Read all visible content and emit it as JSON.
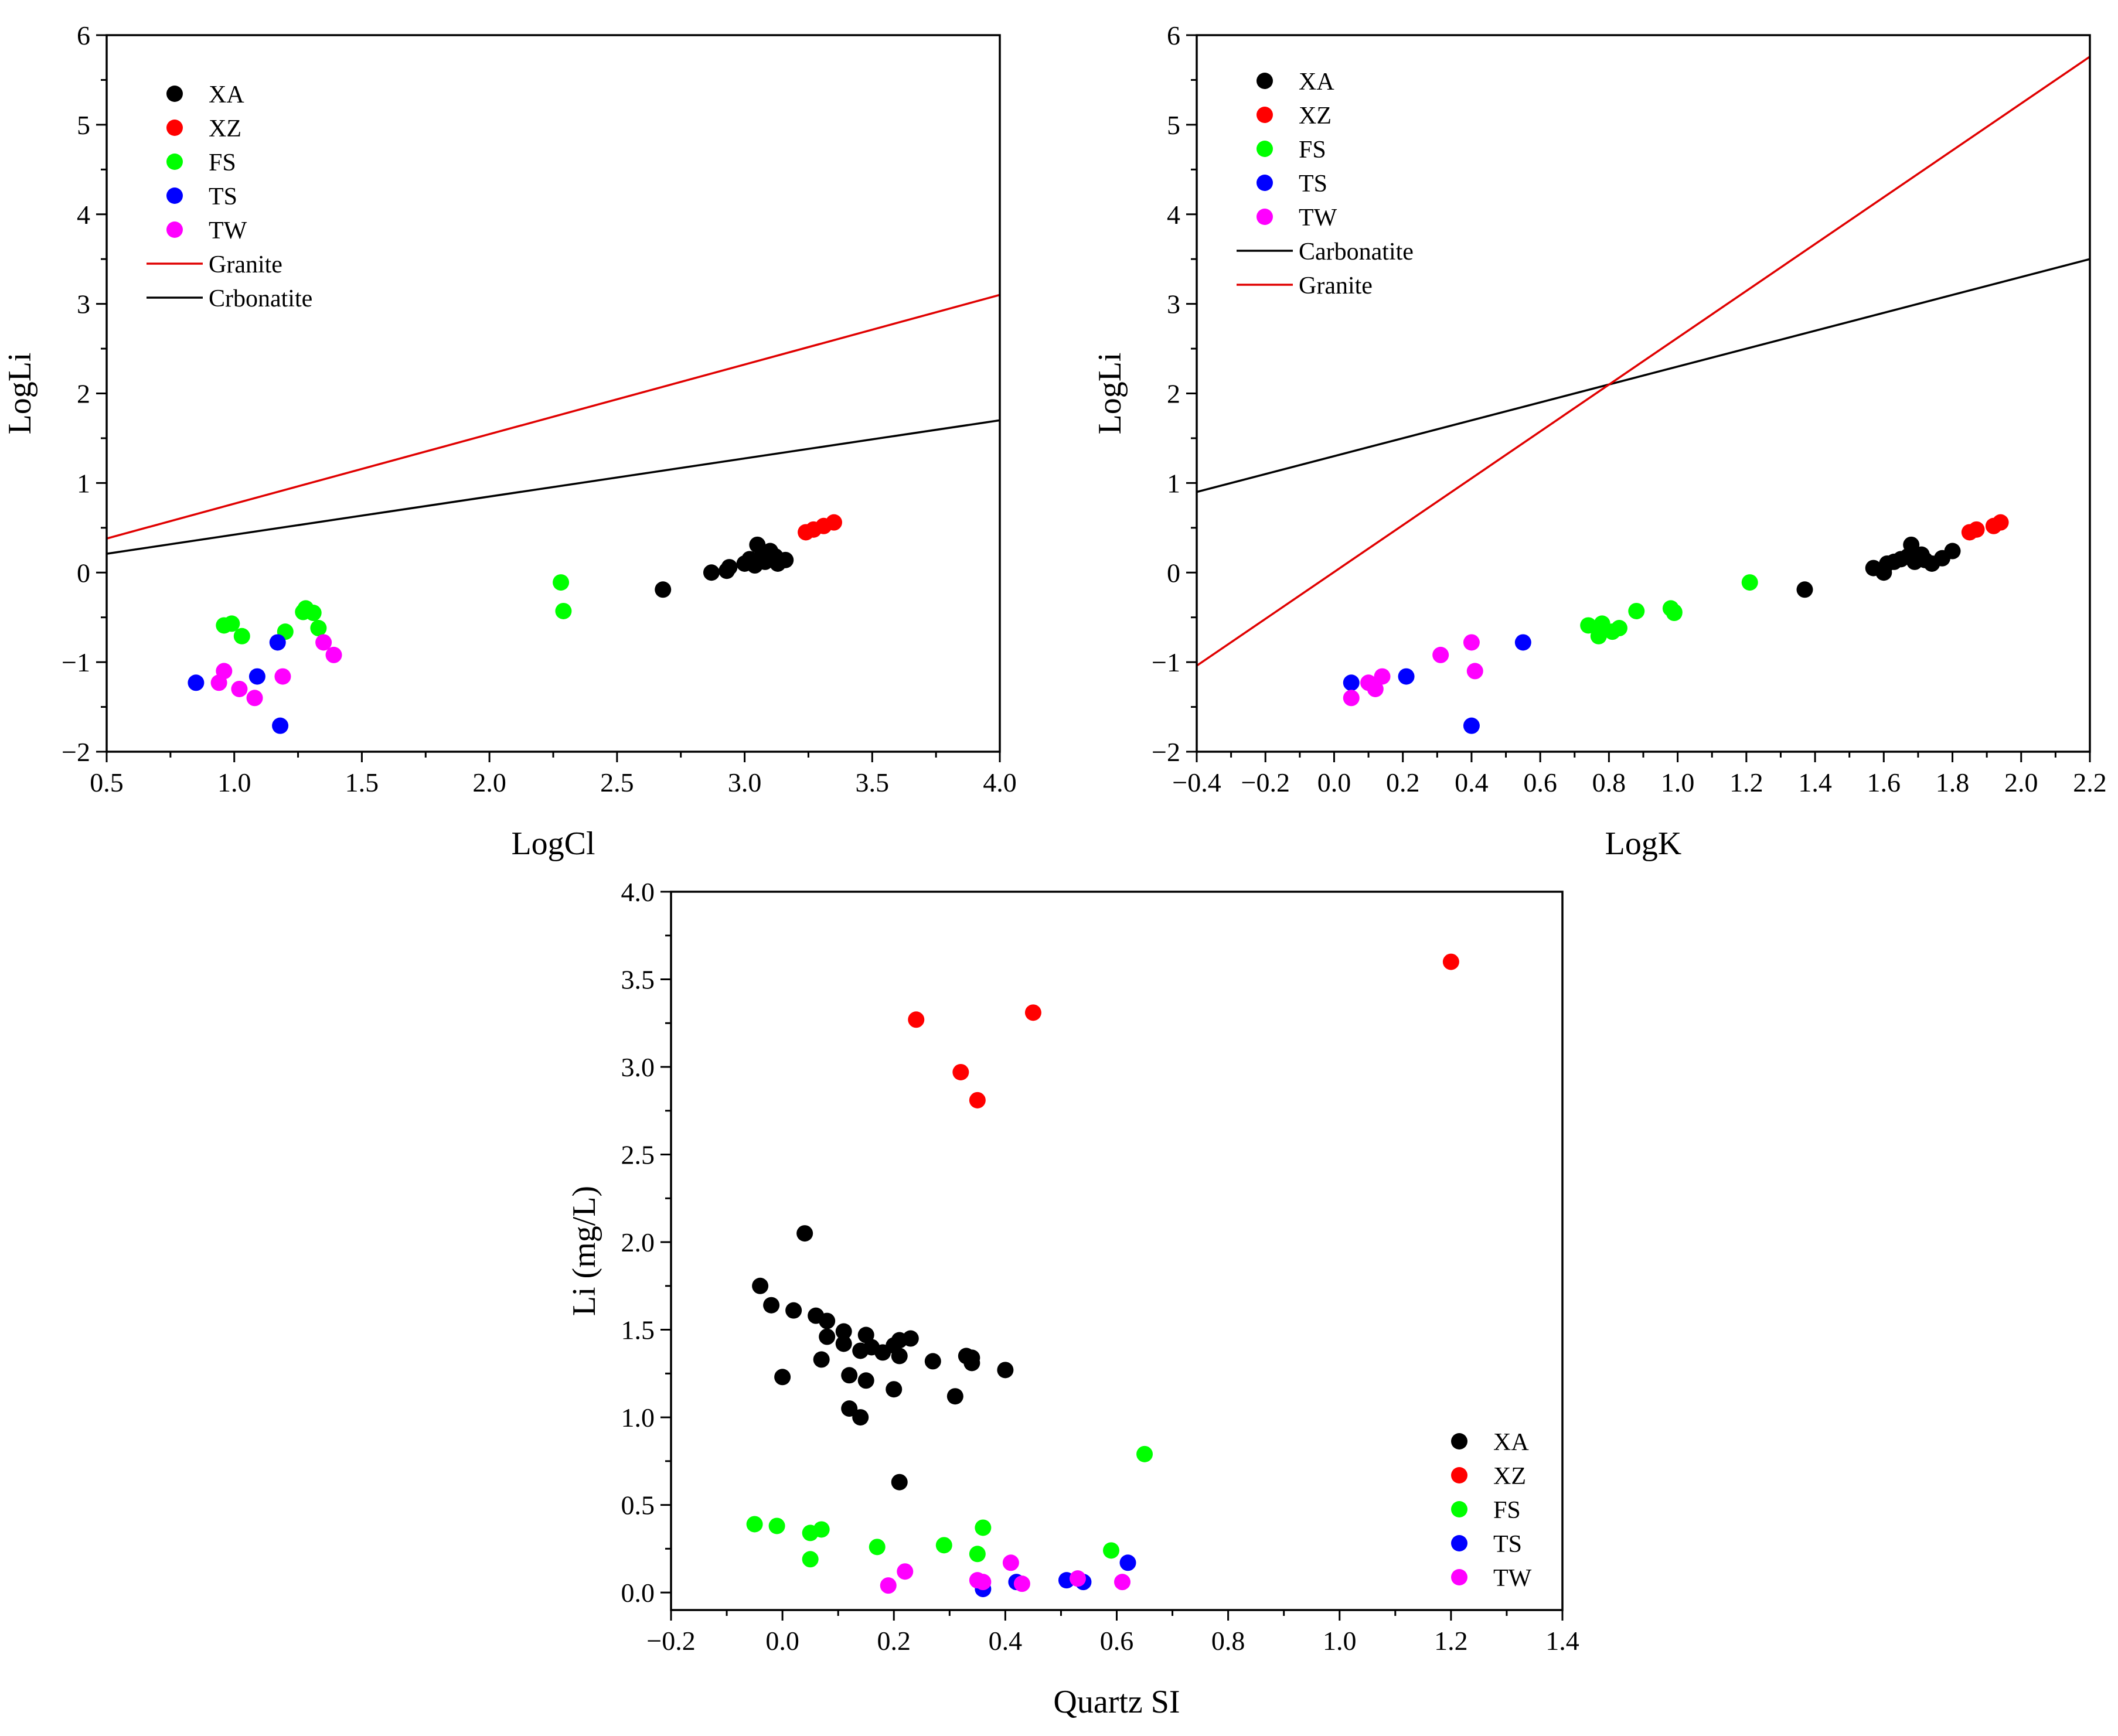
{
  "colors": {
    "XA": "#000000",
    "XZ": "#ff0000",
    "FS": "#00ff00",
    "TS": "#0000ff",
    "TW": "#ff00ff",
    "granite_line": "#e00000",
    "carbonatite_line": "#000000"
  },
  "chart_data": [
    {
      "id": "a",
      "type": "scatter",
      "xlabel": "LogCl",
      "ylabel": "LogLi",
      "xlim": [
        0.5,
        4.0
      ],
      "ylim": [
        -2,
        6
      ],
      "xticks": [
        0.5,
        1.0,
        1.5,
        2.0,
        2.5,
        3.0,
        3.5,
        4.0
      ],
      "xtick_labels": [
        "0.5",
        "1.0",
        "1.5",
        "2.0",
        "2.5",
        "3.0",
        "3.5",
        "4.0"
      ],
      "yticks": [
        -2,
        -1,
        0,
        1,
        2,
        3,
        4,
        5,
        6
      ],
      "ytick_labels": [
        "−2",
        "−1",
        "0",
        "1",
        "2",
        "3",
        "4",
        "5",
        "6"
      ],
      "legend_position": "top-left",
      "legend": [
        {
          "label": "XA",
          "kind": "marker",
          "color": "#000000"
        },
        {
          "label": "XZ",
          "kind": "marker",
          "color": "#ff0000"
        },
        {
          "label": "FS",
          "kind": "marker",
          "color": "#00ff00"
        },
        {
          "label": "TS",
          "kind": "marker",
          "color": "#0000ff"
        },
        {
          "label": "TW",
          "kind": "marker",
          "color": "#ff00ff"
        },
        {
          "label": "Granite",
          "kind": "line",
          "color": "#e00000"
        },
        {
          "label": "Crbonatite",
          "kind": "line",
          "color": "#000000"
        }
      ],
      "lines": [
        {
          "name": "Granite",
          "color": "#e00000",
          "points": [
            [
              0.5,
              0.38
            ],
            [
              4.0,
              3.1
            ]
          ]
        },
        {
          "name": "Crbonatite",
          "color": "#000000",
          "points": [
            [
              0.5,
              0.21
            ],
            [
              4.0,
              1.7
            ]
          ]
        }
      ],
      "series": [
        {
          "name": "XA",
          "color": "#000000",
          "points": [
            [
              2.68,
              -0.19
            ],
            [
              2.87,
              0.0
            ],
            [
              2.93,
              0.02
            ],
            [
              2.94,
              0.06
            ],
            [
              3.0,
              0.1
            ],
            [
              3.02,
              0.15
            ],
            [
              3.04,
              0.08
            ],
            [
              3.05,
              0.31
            ],
            [
              3.07,
              0.2
            ],
            [
              3.08,
              0.12
            ],
            [
              3.1,
              0.24
            ],
            [
              3.12,
              0.18
            ],
            [
              3.13,
              0.1
            ],
            [
              3.16,
              0.14
            ]
          ]
        },
        {
          "name": "XZ",
          "color": "#ff0000",
          "points": [
            [
              3.24,
              0.45
            ],
            [
              3.27,
              0.48
            ],
            [
              3.31,
              0.52
            ],
            [
              3.35,
              0.56
            ]
          ]
        },
        {
          "name": "FS",
          "color": "#00ff00",
          "points": [
            [
              0.96,
              -0.59
            ],
            [
              0.99,
              -0.57
            ],
            [
              1.03,
              -0.71
            ],
            [
              1.2,
              -0.66
            ],
            [
              1.27,
              -0.44
            ],
            [
              1.28,
              -0.4
            ],
            [
              1.31,
              -0.45
            ],
            [
              1.33,
              -0.62
            ],
            [
              2.28,
              -0.11
            ],
            [
              2.29,
              -0.43
            ]
          ]
        },
        {
          "name": "TS",
          "color": "#0000ff",
          "points": [
            [
              0.85,
              -1.23
            ],
            [
              1.09,
              -1.16
            ],
            [
              1.17,
              -0.78
            ],
            [
              1.18,
              -1.71
            ]
          ]
        },
        {
          "name": "TW",
          "color": "#ff00ff",
          "points": [
            [
              0.94,
              -1.23
            ],
            [
              0.96,
              -1.1
            ],
            [
              1.02,
              -1.3
            ],
            [
              1.08,
              -1.4
            ],
            [
              1.19,
              -1.16
            ],
            [
              1.35,
              -0.78
            ],
            [
              1.39,
              -0.92
            ]
          ]
        }
      ]
    },
    {
      "id": "b",
      "type": "scatter",
      "xlabel": "LogK",
      "ylabel": "LogLi",
      "xlim": [
        -0.4,
        2.2
      ],
      "ylim": [
        -2,
        6
      ],
      "xticks": [
        -0.4,
        -0.2,
        0.0,
        0.2,
        0.4,
        0.6,
        0.8,
        1.0,
        1.2,
        1.4,
        1.6,
        1.8,
        2.0,
        2.2
      ],
      "xtick_labels": [
        "−0.4",
        "−0.2",
        "0.0",
        "0.2",
        "0.4",
        "0.6",
        "0.8",
        "1.0",
        "1.2",
        "1.4",
        "1.6",
        "1.8",
        "2.0",
        "2.2"
      ],
      "yticks": [
        -2,
        -1,
        0,
        1,
        2,
        3,
        4,
        5,
        6
      ],
      "ytick_labels": [
        "−2",
        "−1",
        "0",
        "1",
        "2",
        "3",
        "4",
        "5",
        "6"
      ],
      "legend_position": "top-left",
      "legend": [
        {
          "label": "XA",
          "kind": "marker",
          "color": "#000000"
        },
        {
          "label": "XZ",
          "kind": "marker",
          "color": "#ff0000"
        },
        {
          "label": "FS",
          "kind": "marker",
          "color": "#00ff00"
        },
        {
          "label": "TS",
          "kind": "marker",
          "color": "#0000ff"
        },
        {
          "label": "TW",
          "kind": "marker",
          "color": "#ff00ff"
        },
        {
          "label": "Carbonatite",
          "kind": "line",
          "color": "#000000"
        },
        {
          "label": "Granite",
          "kind": "line",
          "color": "#e00000"
        }
      ],
      "lines": [
        {
          "name": "Carbonatite",
          "color": "#000000",
          "points": [
            [
              -0.4,
              0.9
            ],
            [
              2.2,
              3.5
            ]
          ]
        },
        {
          "name": "Granite",
          "color": "#e00000",
          "points": [
            [
              -0.4,
              -1.04
            ],
            [
              2.2,
              5.76
            ]
          ]
        }
      ],
      "series": [
        {
          "name": "XA",
          "color": "#000000",
          "points": [
            [
              1.37,
              -0.19
            ],
            [
              1.57,
              0.05
            ],
            [
              1.6,
              0.0
            ],
            [
              1.61,
              0.1
            ],
            [
              1.63,
              0.12
            ],
            [
              1.65,
              0.15
            ],
            [
              1.67,
              0.18
            ],
            [
              1.68,
              0.31
            ],
            [
              1.69,
              0.12
            ],
            [
              1.71,
              0.2
            ],
            [
              1.72,
              0.14
            ],
            [
              1.74,
              0.1
            ],
            [
              1.77,
              0.16
            ],
            [
              1.8,
              0.24
            ]
          ]
        },
        {
          "name": "XZ",
          "color": "#ff0000",
          "points": [
            [
              1.85,
              0.45
            ],
            [
              1.87,
              0.48
            ],
            [
              1.92,
              0.52
            ],
            [
              1.94,
              0.56
            ]
          ]
        },
        {
          "name": "FS",
          "color": "#00ff00",
          "points": [
            [
              0.74,
              -0.59
            ],
            [
              0.77,
              -0.71
            ],
            [
              0.78,
              -0.57
            ],
            [
              0.81,
              -0.66
            ],
            [
              0.83,
              -0.62
            ],
            [
              0.88,
              -0.43
            ],
            [
              0.98,
              -0.4
            ],
            [
              0.99,
              -0.44
            ],
            [
              0.99,
              -0.45
            ],
            [
              1.21,
              -0.11
            ]
          ]
        },
        {
          "name": "TS",
          "color": "#0000ff",
          "points": [
            [
              0.05,
              -1.23
            ],
            [
              0.21,
              -1.16
            ],
            [
              0.4,
              -1.71
            ],
            [
              0.55,
              -0.78
            ]
          ]
        },
        {
          "name": "TW",
          "color": "#ff00ff",
          "points": [
            [
              0.05,
              -1.4
            ],
            [
              0.1,
              -1.23
            ],
            [
              0.12,
              -1.3
            ],
            [
              0.14,
              -1.16
            ],
            [
              0.31,
              -0.92
            ],
            [
              0.4,
              -0.78
            ],
            [
              0.41,
              -1.1
            ]
          ]
        }
      ]
    },
    {
      "id": "c",
      "type": "scatter",
      "xlabel": "Quartz SI",
      "ylabel": "Li (mg/L)",
      "xlim": [
        -0.2,
        1.4
      ],
      "ylim": [
        -0.1,
        4.0
      ],
      "xticks": [
        -0.2,
        0.0,
        0.2,
        0.4,
        0.6,
        0.8,
        1.0,
        1.2,
        1.4
      ],
      "xtick_labels": [
        "−0.2",
        "0.0",
        "0.2",
        "0.4",
        "0.6",
        "0.8",
        "1.0",
        "1.2",
        "1.4"
      ],
      "yticks": [
        0.0,
        0.5,
        1.0,
        1.5,
        2.0,
        2.5,
        3.0,
        3.5,
        4.0
      ],
      "ytick_labels": [
        "0.0",
        "0.5",
        "1.0",
        "1.5",
        "2.0",
        "2.5",
        "3.0",
        "3.5",
        "4.0"
      ],
      "legend_position": "bottom-right",
      "legend": [
        {
          "label": "XA",
          "kind": "marker",
          "color": "#000000"
        },
        {
          "label": "XZ",
          "kind": "marker",
          "color": "#ff0000"
        },
        {
          "label": "FS",
          "kind": "marker",
          "color": "#00ff00"
        },
        {
          "label": "TS",
          "kind": "marker",
          "color": "#0000ff"
        },
        {
          "label": "TW",
          "kind": "marker",
          "color": "#ff00ff"
        }
      ],
      "lines": [],
      "series": [
        {
          "name": "XA",
          "color": "#000000",
          "points": [
            [
              -0.04,
              1.75
            ],
            [
              -0.02,
              1.64
            ],
            [
              0.0,
              1.23
            ],
            [
              0.02,
              1.61
            ],
            [
              0.04,
              2.05
            ],
            [
              0.06,
              1.58
            ],
            [
              0.07,
              1.33
            ],
            [
              0.08,
              1.55
            ],
            [
              0.08,
              1.46
            ],
            [
              0.11,
              1.49
            ],
            [
              0.11,
              1.42
            ],
            [
              0.12,
              1.24
            ],
            [
              0.12,
              1.05
            ],
            [
              0.14,
              1.38
            ],
            [
              0.14,
              1.0
            ],
            [
              0.15,
              1.47
            ],
            [
              0.15,
              1.21
            ],
            [
              0.16,
              1.4
            ],
            [
              0.18,
              1.37
            ],
            [
              0.2,
              1.41
            ],
            [
              0.2,
              1.16
            ],
            [
              0.21,
              1.44
            ],
            [
              0.21,
              1.35
            ],
            [
              0.21,
              0.63
            ],
            [
              0.23,
              1.45
            ],
            [
              0.27,
              1.32
            ],
            [
              0.31,
              1.12
            ],
            [
              0.33,
              1.35
            ],
            [
              0.34,
              1.31
            ],
            [
              0.34,
              1.34
            ],
            [
              0.4,
              1.27
            ]
          ]
        },
        {
          "name": "XZ",
          "color": "#ff0000",
          "points": [
            [
              0.24,
              3.27
            ],
            [
              0.32,
              2.97
            ],
            [
              0.35,
              2.81
            ],
            [
              0.45,
              3.31
            ],
            [
              1.2,
              3.6
            ]
          ]
        },
        {
          "name": "FS",
          "color": "#00ff00",
          "points": [
            [
              -0.05,
              0.39
            ],
            [
              -0.01,
              0.38
            ],
            [
              0.05,
              0.34
            ],
            [
              0.05,
              0.19
            ],
            [
              0.07,
              0.36
            ],
            [
              0.17,
              0.26
            ],
            [
              0.29,
              0.27
            ],
            [
              0.35,
              0.22
            ],
            [
              0.36,
              0.37
            ],
            [
              0.59,
              0.24
            ],
            [
              0.65,
              0.79
            ]
          ]
        },
        {
          "name": "TS",
          "color": "#0000ff",
          "points": [
            [
              0.36,
              0.02
            ],
            [
              0.42,
              0.06
            ],
            [
              0.51,
              0.07
            ],
            [
              0.54,
              0.06
            ],
            [
              0.62,
              0.17
            ]
          ]
        },
        {
          "name": "TW",
          "color": "#ff00ff",
          "points": [
            [
              0.19,
              0.04
            ],
            [
              0.22,
              0.12
            ],
            [
              0.35,
              0.07
            ],
            [
              0.36,
              0.06
            ],
            [
              0.41,
              0.17
            ],
            [
              0.43,
              0.05
            ],
            [
              0.53,
              0.08
            ],
            [
              0.61,
              0.06
            ]
          ]
        }
      ]
    }
  ]
}
